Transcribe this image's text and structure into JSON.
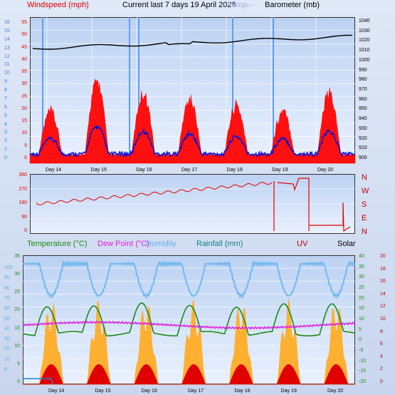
{
  "header": {
    "windspeed_label": "Windspeed (mph)",
    "title": "Current last 7 days 19 April 2026",
    "overlay_ghost": "Temp.",
    "overlay_ghost_tail": "---",
    "barometer_label": "Barometer (mb)"
  },
  "lower_header": {
    "temperature": "Temperature (°C)",
    "dew_point": "Dew Point (°C)",
    "humidity": "Humidity",
    "rainfall": "Rainfall (mm)",
    "uv": "UV",
    "solar": "Solar"
  },
  "colors": {
    "windspeed": "#e00000",
    "gust": "#ff0000",
    "avg_wind": "#1010d0",
    "barometer": "#000000",
    "direction": "#e00000",
    "temperature": "#1a8a1a",
    "dew_point": "#e020e0",
    "humidity": "#70b8f0",
    "rainfall": "#10a0a0",
    "uv": "#c00000",
    "solar": "#ffa000"
  },
  "days": [
    "Day 14",
    "Day 15",
    "Day 16",
    "Day 17",
    "Day 18",
    "Day 19",
    "Day 20"
  ],
  "wind_left_ticks": [
    "55",
    "50",
    "45",
    "40",
    "35",
    "30",
    "25",
    "20",
    "15",
    "10",
    "5",
    "0"
  ],
  "wind_far_left_ticks": [
    "16",
    "15",
    "14",
    "13",
    "12",
    "11",
    "10",
    "9",
    "8",
    "7",
    "6",
    "5",
    "4",
    "3",
    "2",
    "1",
    "0"
  ],
  "baro_ticks": [
    "1040",
    "1030",
    "1020",
    "1010",
    "1000",
    "990",
    "980",
    "970",
    "960",
    "950",
    "940",
    "930",
    "920",
    "910",
    "900"
  ],
  "dir_ticks": [
    "360",
    "270",
    "180",
    "90",
    "0"
  ],
  "dir_labels": [
    "N",
    "W",
    "S",
    "E",
    "N"
  ],
  "humidity_ticks": [
    "100",
    "90",
    "80",
    "70",
    "60",
    "50",
    "40",
    "30",
    "20",
    "10",
    "0"
  ],
  "temp_left_ticks": [
    "35",
    "30",
    "25",
    "20",
    "15",
    "10",
    "5",
    "0"
  ],
  "temp_right_ticks": [
    "40",
    "35",
    "30",
    "25",
    "20",
    "15",
    "10",
    "5",
    "0",
    "-5",
    "-10",
    "-15",
    "-20"
  ],
  "uv_ticks": [
    "20",
    "18",
    "16",
    "14",
    "12",
    "10",
    "8",
    "6",
    "4",
    "2",
    "0"
  ]
}
